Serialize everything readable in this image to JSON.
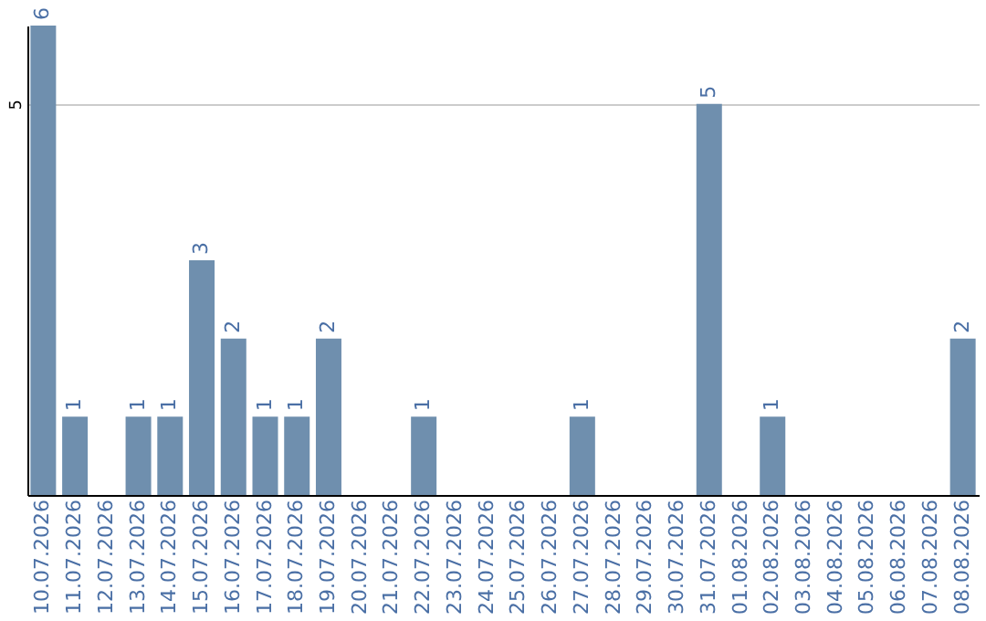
{
  "chart_data": {
    "type": "bar",
    "categories": [
      "10.07.2026",
      "11.07.2026",
      "12.07.2026",
      "13.07.2026",
      "14.07.2026",
      "15.07.2026",
      "16.07.2026",
      "17.07.2026",
      "18.07.2026",
      "19.07.2026",
      "20.07.2026",
      "21.07.2026",
      "22.07.2026",
      "23.07.2026",
      "24.07.2026",
      "25.07.2026",
      "26.07.2026",
      "27.07.2026",
      "28.07.2026",
      "29.07.2026",
      "30.07.2026",
      "31.07.2026",
      "01.08.2026",
      "02.08.2026",
      "03.08.2026",
      "04.08.2026",
      "05.08.2026",
      "06.08.2026",
      "07.08.2026",
      "08.08.2026"
    ],
    "values": [
      6,
      1,
      0,
      1,
      1,
      3,
      2,
      1,
      1,
      2,
      0,
      0,
      1,
      0,
      0,
      0,
      0,
      1,
      0,
      0,
      0,
      5,
      0,
      1,
      0,
      0,
      0,
      0,
      0,
      2
    ],
    "value_labels": [
      "6",
      "1",
      null,
      "1",
      "1",
      "3",
      "2",
      "1",
      "1",
      "2",
      null,
      null,
      "1",
      null,
      null,
      null,
      null,
      "1",
      null,
      null,
      null,
      "5",
      null,
      "1",
      null,
      null,
      null,
      null,
      null,
      "2"
    ],
    "color": "#6f8fae",
    "ylim": [
      0,
      6
    ],
    "yticks": [
      5
    ],
    "grid": "y"
  }
}
